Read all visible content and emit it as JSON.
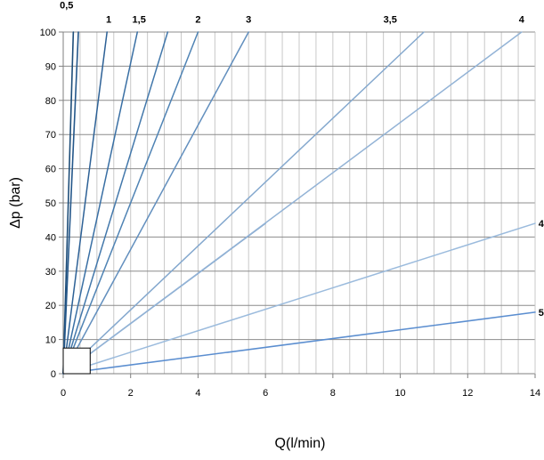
{
  "chart_data": {
    "type": "line",
    "title": "",
    "xlabel": "Q(l/min)",
    "ylabel": "Δp (bar)",
    "xlim": [
      0,
      14
    ],
    "ylim": [
      0,
      100
    ],
    "x_ticks": [
      "0",
      "2",
      "4",
      "6",
      "8",
      "10",
      "12",
      "14"
    ],
    "y_ticks": [
      "0",
      "10",
      "20",
      "30",
      "40",
      "50",
      "60",
      "70",
      "80",
      "90",
      "100"
    ],
    "x_minor_step": 0.5,
    "grid": true,
    "series": [
      {
        "x": [
          0,
          0.3
        ],
        "y": [
          0,
          100
        ],
        "color": "#1f4e79",
        "width": 1.6
      },
      {
        "x": [
          0,
          0.45
        ],
        "y": [
          0,
          100
        ],
        "color": "#24578a",
        "width": 1.6
      },
      {
        "x": [
          0,
          1.3
        ],
        "y": [
          0,
          100
        ],
        "color": "#2d6196",
        "width": 1.5
      },
      {
        "x": [
          0,
          2.2
        ],
        "y": [
          0,
          100
        ],
        "color": "#396fa4",
        "width": 1.5
      },
      {
        "x": [
          0,
          3.1
        ],
        "y": [
          0,
          100
        ],
        "color": "#4378ab",
        "width": 1.5
      },
      {
        "x": [
          0,
          4.0
        ],
        "y": [
          0,
          100
        ],
        "color": "#4f83b4",
        "width": 1.5
      },
      {
        "x": [
          0,
          5.5
        ],
        "y": [
          0,
          100
        ],
        "color": "#628fbe",
        "width": 1.5
      },
      {
        "x": [
          0,
          6.0
        ],
        "y": [
          0,
          44
        ],
        "color": "#739cc7",
        "width": 1.5
      },
      {
        "x": [
          0,
          10.7
        ],
        "y": [
          0,
          100
        ],
        "color": "#84a8ce",
        "width": 1.5
      },
      {
        "x": [
          0,
          13.6
        ],
        "y": [
          0,
          100
        ],
        "color": "#93b3d6",
        "width": 1.5
      },
      {
        "x": [
          0,
          14
        ],
        "y": [
          0,
          44
        ],
        "color": "#9bbbdd",
        "width": 1.5
      },
      {
        "x": [
          0,
          14
        ],
        "y": [
          0,
          18
        ],
        "color": "#5b8ed0",
        "width": 1.6
      }
    ],
    "curve_labels": [
      {
        "text": "0,5",
        "x": 0.1,
        "y": 108
      },
      {
        "text": "1",
        "x": 1.35,
        "y": 103.8
      },
      {
        "text": "1,5",
        "x": 2.25,
        "y": 103.8
      },
      {
        "text": "2",
        "x": 4.0,
        "y": 103.8
      },
      {
        "text": "3",
        "x": 5.5,
        "y": 103.8
      },
      {
        "text": "3,5",
        "x": 9.7,
        "y": 103.8
      },
      {
        "text": "4",
        "x": 13.6,
        "y": 103.8
      },
      {
        "text": "4",
        "x": 14.18,
        "y": 44
      },
      {
        "text": "5",
        "x": 14.18,
        "y": 18
      }
    ],
    "marker_box": {
      "x0": 0,
      "x1": 0.8,
      "y0": 0,
      "y1": 7.5
    }
  }
}
